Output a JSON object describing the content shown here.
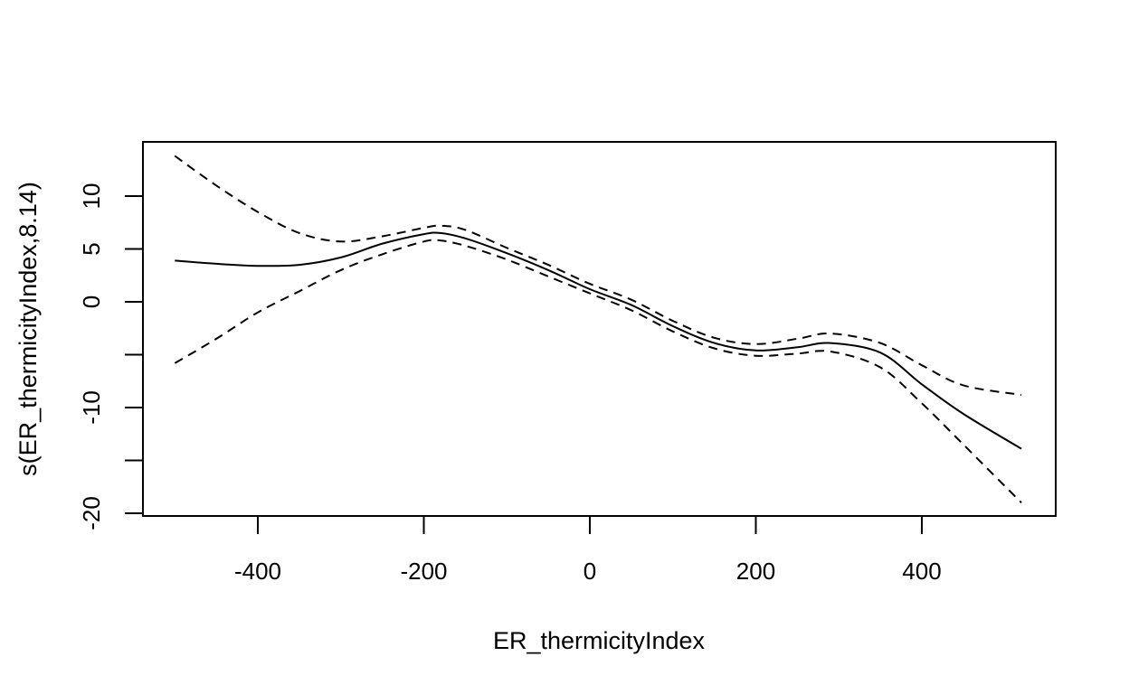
{
  "chart_data": {
    "type": "line",
    "title": "",
    "xlabel": "ER_thermicityIndex",
    "ylabel": "s(ER_thermicityIndex,8.14)",
    "xlim": [
      -500,
      520
    ],
    "ylim": [
      -20,
      15
    ],
    "x_ticks": [
      -400,
      -200,
      0,
      200,
      400
    ],
    "y_ticks": [
      -20,
      -15,
      -10,
      -5,
      0,
      5,
      10
    ],
    "y_tick_labels": [
      "-20",
      "",
      "-10",
      "",
      "0",
      "5",
      "10"
    ],
    "grid": false,
    "legend": "none",
    "x": [
      -500,
      -450,
      -400,
      -350,
      -300,
      -250,
      -200,
      -180,
      -150,
      -100,
      -50,
      0,
      50,
      100,
      150,
      200,
      250,
      290,
      350,
      400,
      450,
      520
    ],
    "series": [
      {
        "style": "solid",
        "color": "#000000",
        "values": [
          3.9,
          3.6,
          3.4,
          3.5,
          4.2,
          5.5,
          6.4,
          6.5,
          6.0,
          4.6,
          3.0,
          1.2,
          -0.3,
          -2.3,
          -3.9,
          -4.6,
          -4.3,
          -3.9,
          -4.8,
          -7.8,
          -10.6,
          -13.9
        ]
      },
      {
        "style": "dashed",
        "color": "#000000",
        "values": [
          13.8,
          11.0,
          8.5,
          6.5,
          5.7,
          6.2,
          7.0,
          7.2,
          6.8,
          5.1,
          3.5,
          1.7,
          0.2,
          -1.8,
          -3.4,
          -4.0,
          -3.5,
          -3.0,
          -3.9,
          -6.0,
          -7.9,
          -8.8
        ]
      },
      {
        "style": "dashed",
        "color": "#000000",
        "values": [
          -5.8,
          -3.5,
          -1.0,
          1.0,
          3.0,
          4.5,
          5.7,
          5.8,
          5.3,
          4.0,
          2.4,
          0.8,
          -0.8,
          -2.8,
          -4.4,
          -5.1,
          -4.9,
          -4.7,
          -6.2,
          -9.6,
          -13.5,
          -19.0
        ]
      }
    ]
  }
}
